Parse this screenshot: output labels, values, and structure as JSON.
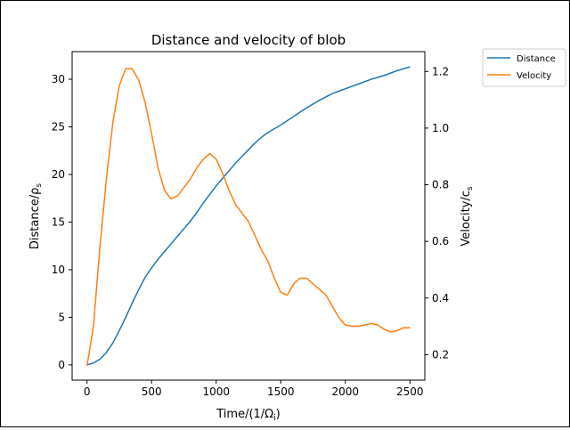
{
  "chart_data": {
    "type": "line",
    "title": "Distance and velocity of blob",
    "xlabel": "Time/(1/Ω",
    "xlabel_sub": "i",
    "xlabel_suffix": ")",
    "ylabel_left": "Distance/ρ",
    "ylabel_left_sub": "s",
    "ylabel_right": "Velocity/c",
    "ylabel_right_sub": "s",
    "xlim": [
      -115,
      2615
    ],
    "ylim_left": [
      -1.6,
      32.9
    ],
    "ylim_right": [
      0.11,
      1.27
    ],
    "x_ticks": [
      0,
      500,
      1000,
      1500,
      2000,
      2500
    ],
    "y_left_ticks": [
      0,
      5,
      10,
      15,
      20,
      25,
      30
    ],
    "y_right_ticks": [
      0.2,
      0.4,
      0.6,
      0.8,
      1.0,
      1.2
    ],
    "y_right_tick_labels": [
      "0.2",
      "0.4",
      "0.6",
      "0.8",
      "1.0",
      "1.2"
    ],
    "legend_position": "outside-top-right",
    "series": [
      {
        "name": "Distance",
        "axis": "left",
        "color": "#1f77b4",
        "x": [
          0,
          50,
          100,
          150,
          200,
          250,
          300,
          350,
          400,
          450,
          500,
          550,
          600,
          650,
          700,
          750,
          800,
          850,
          900,
          950,
          1000,
          1050,
          1100,
          1150,
          1200,
          1250,
          1300,
          1350,
          1400,
          1450,
          1500,
          1600,
          1700,
          1800,
          1900,
          2000,
          2100,
          2200,
          2300,
          2400,
          2500
        ],
        "y": [
          0,
          0.2,
          0.6,
          1.3,
          2.3,
          3.6,
          5.0,
          6.5,
          7.9,
          9.2,
          10.2,
          11.1,
          11.9,
          12.7,
          13.5,
          14.3,
          15.1,
          16.0,
          17.0,
          17.9,
          18.8,
          19.6,
          20.4,
          21.2,
          21.9,
          22.6,
          23.3,
          23.9,
          24.4,
          24.8,
          25.2,
          26.1,
          27.0,
          27.8,
          28.5,
          29.0,
          29.5,
          30.0,
          30.4,
          30.9,
          31.3
        ]
      },
      {
        "name": "Velocity",
        "axis": "right",
        "color": "#ff7f0e",
        "x": [
          0,
          50,
          100,
          150,
          200,
          250,
          300,
          350,
          400,
          450,
          500,
          550,
          600,
          650,
          700,
          750,
          800,
          850,
          900,
          950,
          1000,
          1050,
          1100,
          1150,
          1200,
          1250,
          1300,
          1350,
          1400,
          1450,
          1500,
          1550,
          1600,
          1650,
          1700,
          1750,
          1800,
          1850,
          1900,
          1950,
          2000,
          2050,
          2100,
          2150,
          2200,
          2250,
          2300,
          2350,
          2400,
          2450,
          2500
        ],
        "y": [
          0.16,
          0.3,
          0.58,
          0.82,
          1.02,
          1.15,
          1.21,
          1.21,
          1.17,
          1.09,
          0.98,
          0.86,
          0.78,
          0.75,
          0.76,
          0.79,
          0.82,
          0.86,
          0.89,
          0.91,
          0.89,
          0.84,
          0.78,
          0.73,
          0.7,
          0.67,
          0.62,
          0.57,
          0.53,
          0.47,
          0.42,
          0.41,
          0.45,
          0.47,
          0.47,
          0.45,
          0.43,
          0.41,
          0.37,
          0.33,
          0.305,
          0.3,
          0.3,
          0.305,
          0.31,
          0.305,
          0.29,
          0.28,
          0.285,
          0.295,
          0.295
        ]
      }
    ]
  }
}
